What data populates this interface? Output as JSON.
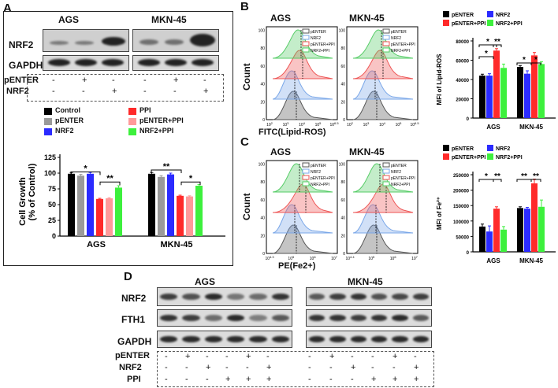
{
  "panels": {
    "A": "A",
    "B": "B",
    "C": "C",
    "D": "D"
  },
  "panelA": {
    "cell_lines": [
      "AGS",
      "MKN-45"
    ],
    "blot_labels": [
      "NRF2",
      "GAPDH"
    ],
    "treatment_labels": [
      "pENTER",
      "NRF2"
    ],
    "signs_pENTER": [
      "-",
      "+",
      "-",
      "-",
      "+",
      "-"
    ],
    "signs_NRF2": [
      "-",
      "-",
      "+",
      "-",
      "-",
      "+"
    ],
    "legend": [
      {
        "name": "Control",
        "color": "#000000"
      },
      {
        "name": "PPI",
        "color": "#ff2a2a"
      },
      {
        "name": "pENTER",
        "color": "#9a9a9a"
      },
      {
        "name": "pENTER+PPI",
        "color": "#ff9a9a"
      },
      {
        "name": "NRF2",
        "color": "#2b2bff"
      },
      {
        "name": "NRF2+PPI",
        "color": "#3df03d"
      }
    ],
    "sig": {
      "agsLeft": "*",
      "agsRight": "**",
      "mknLeft": "**",
      "mknRight": "*"
    }
  },
  "chart_data": [
    {
      "type": "bar",
      "panel": "A",
      "categories": [
        "AGS",
        "MKN-45"
      ],
      "series": [
        {
          "name": "Control",
          "values": [
            99,
            99
          ]
        },
        {
          "name": "pENTER",
          "values": [
            96,
            94
          ]
        },
        {
          "name": "NRF2",
          "values": [
            99,
            98
          ]
        },
        {
          "name": "PPI",
          "values": [
            59,
            64
          ]
        },
        {
          "name": "pENTER+PPI",
          "values": [
            60,
            63
          ]
        },
        {
          "name": "NRF2+PPI",
          "values": [
            77,
            80
          ]
        }
      ],
      "errors": [
        [
          2,
          2
        ],
        [
          2,
          2
        ],
        [
          2,
          2
        ],
        [
          1,
          1
        ],
        [
          1,
          1
        ],
        [
          3,
          2
        ]
      ],
      "ylabel": "Cell Growth\n(% of Control)",
      "yticks": [
        0,
        25,
        50,
        75,
        100,
        125
      ],
      "ylim": [
        0,
        125
      ]
    },
    {
      "type": "bar",
      "panel": "B",
      "categories": [
        "AGS",
        "MKN-45"
      ],
      "series": [
        {
          "name": "pENTER",
          "values": [
            44000,
            53000
          ]
        },
        {
          "name": "NRF2",
          "values": [
            44000,
            46000
          ]
        },
        {
          "name": "pENTER+PPI",
          "values": [
            70000,
            65000
          ]
        },
        {
          "name": "NRF2+PPI",
          "values": [
            52000,
            56000
          ]
        }
      ],
      "errors": [
        [
          1500,
          1500
        ],
        [
          2000,
          3000
        ],
        [
          2000,
          3000
        ],
        [
          4000,
          2500
        ]
      ],
      "ylabel": "MFI of Lipid-ROS",
      "yticks": [
        0,
        20000,
        40000,
        60000,
        80000
      ],
      "ytick_labels": [
        "0",
        "20000",
        "40000",
        "60000",
        "80000"
      ],
      "ylim": [
        0,
        80000
      ]
    },
    {
      "type": "bar",
      "panel": "C",
      "categories": [
        "AGS",
        "MKN-45"
      ],
      "series": [
        {
          "name": "pENTER",
          "values": [
            82000,
            142000
          ]
        },
        {
          "name": "NRF2",
          "values": [
            66000,
            140000
          ]
        },
        {
          "name": "pENTER+PPI",
          "values": [
            140000,
            222000
          ]
        },
        {
          "name": "NRF2+PPI",
          "values": [
            72000,
            146000
          ]
        }
      ],
      "errors": [
        [
          8000,
          4000
        ],
        [
          18000,
          4000
        ],
        [
          6000,
          14000
        ],
        [
          10000,
          22000
        ]
      ],
      "ylabel": "MFI of Fe²⁺",
      "yticks": [
        0,
        50000,
        100000,
        150000,
        200000,
        250000
      ],
      "ytick_labels": [
        "0",
        "50000",
        "100000",
        "150000",
        "200000",
        "250000"
      ],
      "ylim": [
        0,
        250000
      ]
    }
  ],
  "panelB": {
    "titles": [
      "AGS",
      "MKN-45"
    ],
    "xlabel": "FITC(Lipid-ROS)",
    "ylabel": "Count",
    "legend": [
      "pENTER",
      "NRF2",
      "pENTER+PPI",
      "NRF2+PPI"
    ],
    "legend_colors": [
      "#000000",
      "#2b2bff",
      "#ff2a2a",
      "#3df03d"
    ],
    "hist_legend": [
      "pENTER",
      "NRF2",
      "pENTER+PPI",
      "NRF2+PPI"
    ],
    "hist_colors": [
      "#555555",
      "#7aa7e8",
      "#ee5555",
      "#55cc66"
    ],
    "yticks": [
      "0",
      "20",
      "40",
      "60",
      "80",
      "100"
    ],
    "xticks": [
      "10",
      "10",
      "10",
      "10",
      "10"
    ],
    "xtick_exp": [
      "2",
      "3",
      "4",
      "5",
      "6.5"
    ],
    "sig": {
      "agsTop": "*",
      "agsMid": "*",
      "agsRight": "**",
      "mknLeft": "*",
      "mknRight": "*"
    }
  },
  "panelC": {
    "titles": [
      "AGS",
      "MKN-45"
    ],
    "xlabel": "PE(Fe2+)",
    "ylabel": "Count",
    "legend": [
      "pENTER",
      "NRF2",
      "pENTER+PPI",
      "NRF2+PPI"
    ],
    "legend_colors": [
      "#000000",
      "#2b2bff",
      "#ff2a2a",
      "#3df03d"
    ],
    "hist_legend": [
      "pENTER",
      "NRF2",
      "pENTER+PPI",
      "NRF2+PPI"
    ],
    "hist_colors": [
      "#555555",
      "#7aa7e8",
      "#ee5555",
      "#55cc66"
    ],
    "yticks": [
      "0",
      "20",
      "40",
      "60",
      "80",
      "100"
    ],
    "xticks_left": [
      "10",
      "10",
      "10",
      "10"
    ],
    "xtick_exp_left": [
      "4.3",
      "5",
      "6",
      "7"
    ],
    "xticks_right": [
      "10",
      "10",
      "10",
      "10"
    ],
    "xtick_exp_right": [
      "4.4",
      "5",
      "6",
      "7"
    ],
    "sig": {
      "agsLeft": "*",
      "agsRight": "**",
      "mknLeft": "**",
      "mknRight": "**"
    }
  },
  "panelD": {
    "cell_lines": [
      "AGS",
      "MKN-45"
    ],
    "blot_labels": [
      "NRF2",
      "FTH1",
      "GAPDH"
    ],
    "treatment_labels": [
      "pENTER",
      "NRF2",
      "PPI"
    ],
    "signs_pENTER": [
      "-",
      "+",
      "-",
      "-",
      "+",
      "-",
      "-",
      "+",
      "-",
      "-",
      "+",
      "-"
    ],
    "signs_NRF2": [
      "-",
      "-",
      "+",
      "-",
      "-",
      "+",
      "-",
      "-",
      "+",
      "-",
      "-",
      "+"
    ],
    "signs_PPI": [
      "-",
      "-",
      "-",
      "+",
      "+",
      "+",
      "-",
      "-",
      "-",
      "+",
      "+",
      "+"
    ]
  }
}
